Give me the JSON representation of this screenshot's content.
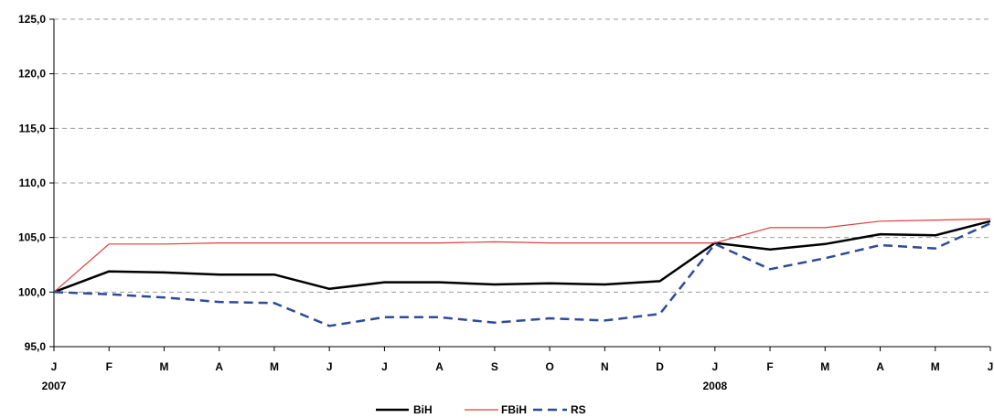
{
  "chart_data": {
    "type": "line",
    "title": "",
    "xlabel": "",
    "ylabel": "",
    "categories": [
      "J",
      "F",
      "M",
      "A",
      "M",
      "J",
      "J",
      "A",
      "S",
      "O",
      "N",
      "D",
      "J",
      "F",
      "M",
      "A",
      "M",
      "J"
    ],
    "year_labels": [
      {
        "index": 0,
        "label": "2007"
      },
      {
        "index": 12,
        "label": "2008"
      }
    ],
    "ylim": [
      95,
      125
    ],
    "yticks": [
      95,
      100,
      105,
      110,
      115,
      120,
      125
    ],
    "ytick_labels": [
      "95,0",
      "100,0",
      "105,0",
      "110,0",
      "115,0",
      "120,0",
      "125,0"
    ],
    "grid": true,
    "legend_position": "bottom",
    "series": [
      {
        "name": "BiH",
        "color": "#000000",
        "style": "solid-thick",
        "values": [
          100.0,
          101.9,
          101.8,
          101.6,
          101.6,
          100.3,
          100.9,
          100.9,
          100.7,
          100.8,
          100.7,
          101.0,
          104.5,
          103.9,
          104.4,
          105.3,
          105.2,
          106.5
        ]
      },
      {
        "name": "FBiH",
        "color": "#e03c3c",
        "style": "solid-thin",
        "values": [
          100.0,
          104.4,
          104.4,
          104.5,
          104.5,
          104.5,
          104.5,
          104.5,
          104.6,
          104.5,
          104.5,
          104.5,
          104.5,
          105.9,
          105.9,
          106.5,
          106.6,
          106.7
        ]
      },
      {
        "name": "RS",
        "color": "#2e4a9a",
        "style": "dashed",
        "values": [
          100.0,
          99.8,
          99.5,
          99.1,
          99.0,
          96.9,
          97.7,
          97.7,
          97.2,
          97.6,
          97.4,
          98.0,
          104.4,
          102.1,
          103.1,
          104.3,
          104.0,
          106.3
        ]
      }
    ]
  }
}
